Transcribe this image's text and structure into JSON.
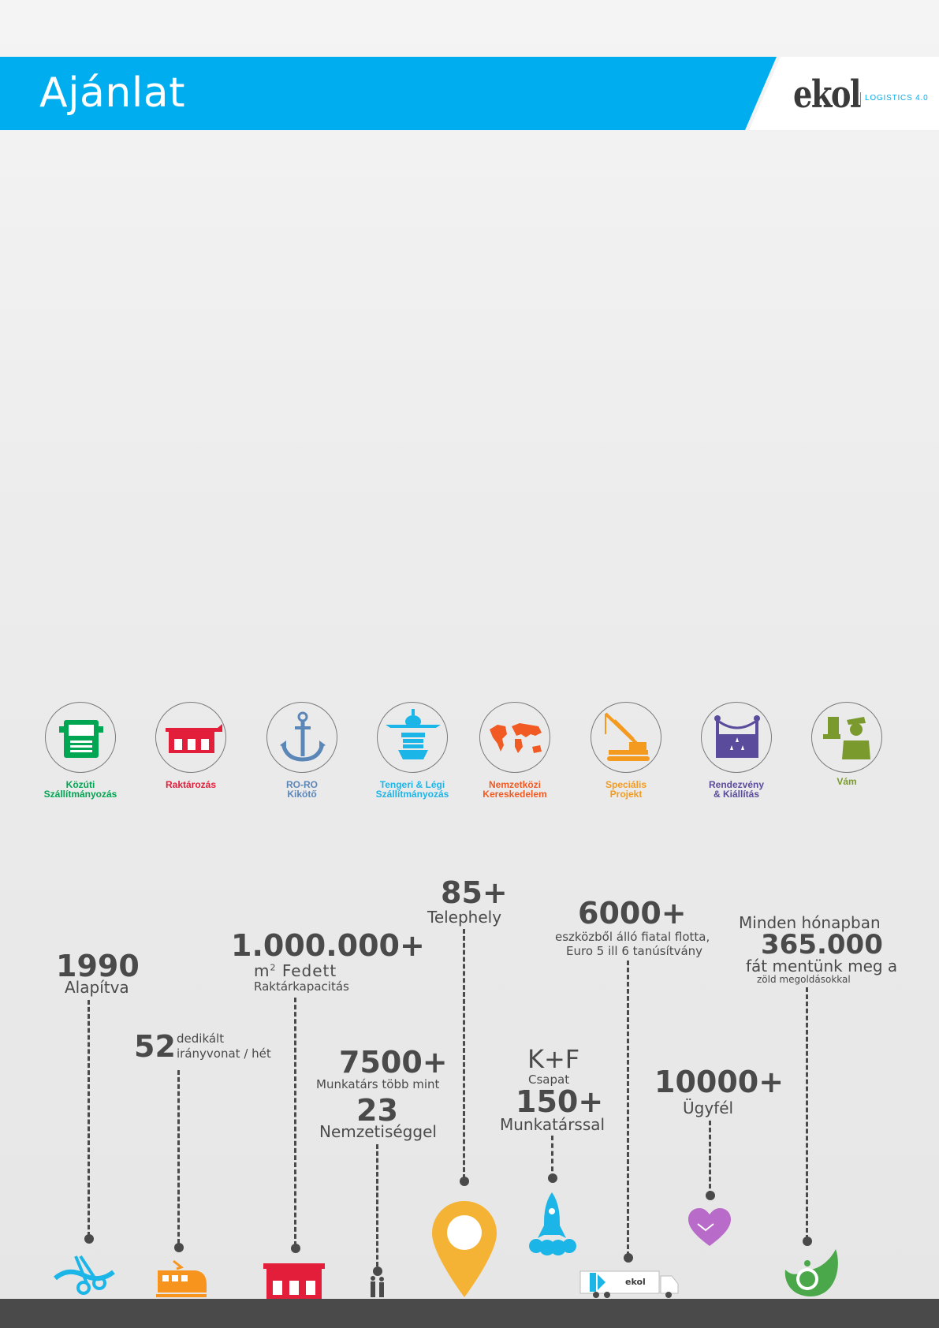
{
  "header": {
    "title": "Ajánlat",
    "logo_word": "ekol",
    "logo_tagline": "LOGISTICS 4.0",
    "band_color": "#00aeef"
  },
  "services": [
    {
      "label": "Közúti\nSzállítmányozás",
      "color": "#00a651",
      "icon": "truck-icon"
    },
    {
      "label": "Raktározás",
      "color": "#e31e3a",
      "icon": "warehouse-icon"
    },
    {
      "label": "RO-RO\nKikötő",
      "color": "#5b86b8",
      "icon": "anchor-icon"
    },
    {
      "label": "Tengeri & Légi\nSzállítmányozás",
      "color": "#1cb5e8",
      "icon": "plane-ship-icon"
    },
    {
      "label": "Nemzetközi\nKereskedelem",
      "color": "#f15a22",
      "icon": "world-map-icon"
    },
    {
      "label": "Speciális\nProjekt",
      "color": "#f39a1f",
      "icon": "crane-icon"
    },
    {
      "label": "Rendezvény\n& Kiállítás",
      "color": "#5b4b9c",
      "icon": "event-stage-icon"
    },
    {
      "label": "Vám",
      "color": "#7a9a2e",
      "icon": "customs-officer-icon"
    }
  ],
  "timeline": {
    "founded": {
      "value": "1990",
      "label": "Alapítva",
      "icon": "ribbon-scissors-icon"
    },
    "trains": {
      "value": "52",
      "label1": "dedikált",
      "label2": "irányvonat / hét",
      "icon": "train-icon"
    },
    "warehouse": {
      "value": "1.000.000+",
      "label1_unit": "m",
      "label1_sup": "2",
      "label1_rest": " Fedett",
      "label2": "Raktárkapacitás",
      "icon": "warehouse-icon"
    },
    "staff": {
      "value": "7500+",
      "label1": "Munkatárs több mint",
      "value2": "23",
      "label2": "Nemzetiséggel",
      "icon": "people-icon"
    },
    "sites": {
      "value": "85+",
      "label": "Telephely",
      "icon": "location-pin-icon"
    },
    "rnd": {
      "label1": "K+F",
      "label2": "Csapat",
      "value": "150+",
      "label3": "Munkatárssal",
      "icon": "rocket-icon"
    },
    "fleet": {
      "value": "6000+",
      "label1": "eszközből álló fiatal flotta,",
      "label2": "Euro 5 ill 6 tanúsítvány",
      "icon": "truck-trailer-icon",
      "truck_brand": "ekol"
    },
    "clients": {
      "value": "10000+",
      "label": "Ügyfél",
      "icon": "heart-handshake-icon"
    },
    "trees": {
      "label1": "Minden hónapban",
      "value": "365.000",
      "label2": "fát mentünk meg a",
      "label3": "zöld megoldásokkal",
      "icon": "eco-leaf-icon"
    }
  },
  "colors": {
    "text_dark": "#4a4a4a",
    "accent": "#00aeef",
    "pin": "#f5b335",
    "rocket": "#1cb5e8",
    "heart": "#b86bc9",
    "eco": "#4aa84a",
    "train": "#f7941d",
    "warehouse": "#e31e3a"
  }
}
